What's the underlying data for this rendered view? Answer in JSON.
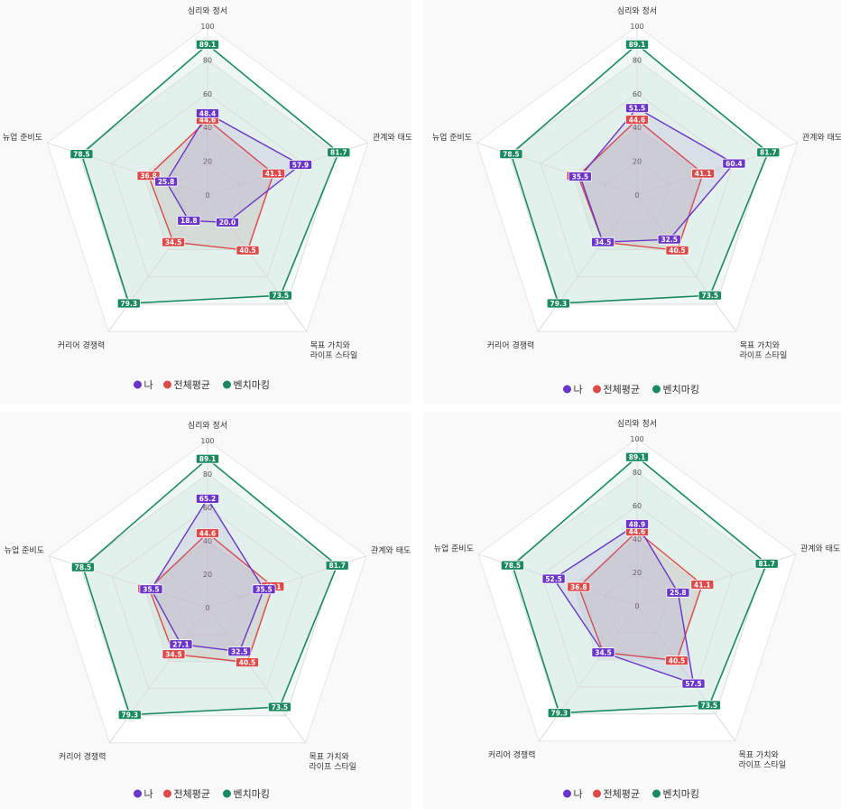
{
  "chart_data": [
    {
      "type": "radar",
      "axes": [
        "심리와 정서",
        "관계와 태도",
        "목표 가치와 라이프 스타일",
        "커리어 경쟁력",
        "뉴업 준비도"
      ],
      "axis_label_lines": [
        [
          "심리와 정서"
        ],
        [
          "관계와 태도"
        ],
        [
          "목표 가치와",
          "라이프 스타일"
        ],
        [
          "커리어 경쟁력"
        ],
        [
          "뉴업 준비도"
        ]
      ],
      "rlim": [
        0,
        100
      ],
      "ticks": [
        0,
        20,
        40,
        60,
        80,
        100
      ],
      "series": [
        {
          "name": "벤치마킹",
          "color": "#1a8a5e",
          "values": [
            89.1,
            81.7,
            73.5,
            79.3,
            78.5
          ]
        },
        {
          "name": "전체평균",
          "color": "#dc4a4a",
          "values": [
            44.6,
            41.1,
            40.5,
            34.5,
            36.8
          ]
        },
        {
          "name": "나",
          "color": "#6a35c8",
          "values": [
            48.4,
            57.9,
            20.0,
            18.8,
            25.8
          ]
        }
      ],
      "legend_position": "bottom"
    },
    {
      "type": "radar",
      "axes": [
        "심리와 정서",
        "관계와 태도",
        "목표 가치와 라이프 스타일",
        "커리어 경쟁력",
        "뉴업 준비도"
      ],
      "axis_label_lines": [
        [
          "심리와 정서"
        ],
        [
          "관계와 태도"
        ],
        [
          "목표 가치와",
          "라이프 스타일"
        ],
        [
          "커리어 경쟁력"
        ],
        [
          "뉴업 준비도"
        ]
      ],
      "rlim": [
        0,
        100
      ],
      "ticks": [
        0,
        20,
        40,
        60,
        80,
        100
      ],
      "series": [
        {
          "name": "벤치마킹",
          "color": "#1a8a5e",
          "values": [
            89.1,
            81.7,
            73.5,
            79.3,
            78.5
          ]
        },
        {
          "name": "전체평균",
          "color": "#dc4a4a",
          "values": [
            44.6,
            41.1,
            40.5,
            34.5,
            36.8
          ]
        },
        {
          "name": "나",
          "color": "#6a35c8",
          "values": [
            51.5,
            60.4,
            32.5,
            34.5,
            35.5
          ]
        }
      ],
      "legend_position": "bottom"
    },
    {
      "type": "radar",
      "axes": [
        "심리와 정서",
        "관계와 태도",
        "목표 가치와 라이프 스타일",
        "커리어 경쟁력",
        "뉴업 준비도"
      ],
      "axis_label_lines": [
        [
          "심리와 정서"
        ],
        [
          "관계와 태도"
        ],
        [
          "목표 가치와",
          "라이프 스타일"
        ],
        [
          "커리어 경쟁력"
        ],
        [
          "뉴업 준비도"
        ]
      ],
      "rlim": [
        0,
        100
      ],
      "ticks": [
        0,
        20,
        40,
        60,
        80,
        100
      ],
      "series": [
        {
          "name": "벤치마킹",
          "color": "#1a8a5e",
          "values": [
            89.1,
            81.7,
            73.5,
            79.3,
            78.5
          ]
        },
        {
          "name": "전체평균",
          "color": "#dc4a4a",
          "values": [
            44.6,
            41.1,
            40.5,
            34.5,
            36.8
          ]
        },
        {
          "name": "나",
          "color": "#6a35c8",
          "values": [
            65.2,
            35.5,
            32.5,
            27.1,
            35.5
          ]
        }
      ],
      "legend_position": "bottom"
    },
    {
      "type": "radar",
      "axes": [
        "심리와 정서",
        "관계와 태도",
        "목표 가치와 라이프 스타일",
        "커리어 경쟁력",
        "뉴업 준비도"
      ],
      "axis_label_lines": [
        [
          "심리와 정서"
        ],
        [
          "관계와 태도"
        ],
        [
          "목표 가치와",
          "라이프 스타일"
        ],
        [
          "커리어 경쟁력"
        ],
        [
          "뉴업 준비도"
        ]
      ],
      "rlim": [
        0,
        100
      ],
      "ticks": [
        0,
        20,
        40,
        60,
        80,
        100
      ],
      "series": [
        {
          "name": "벤치마킹",
          "color": "#1a8a5e",
          "values": [
            89.1,
            81.7,
            73.5,
            79.3,
            78.5
          ]
        },
        {
          "name": "전체평균",
          "color": "#dc4a4a",
          "values": [
            44.6,
            41.1,
            40.5,
            34.5,
            36.8
          ]
        },
        {
          "name": "나",
          "color": "#6a35c8",
          "values": [
            48.9,
            25.8,
            57.5,
            34.5,
            52.5
          ]
        }
      ],
      "legend_position": "bottom"
    }
  ],
  "legend": [
    {
      "label": "나",
      "color": "#6a35c8"
    },
    {
      "label": "전체평균",
      "color": "#dc4a4a"
    },
    {
      "label": "벤치마킹",
      "color": "#1a8a5e"
    }
  ]
}
